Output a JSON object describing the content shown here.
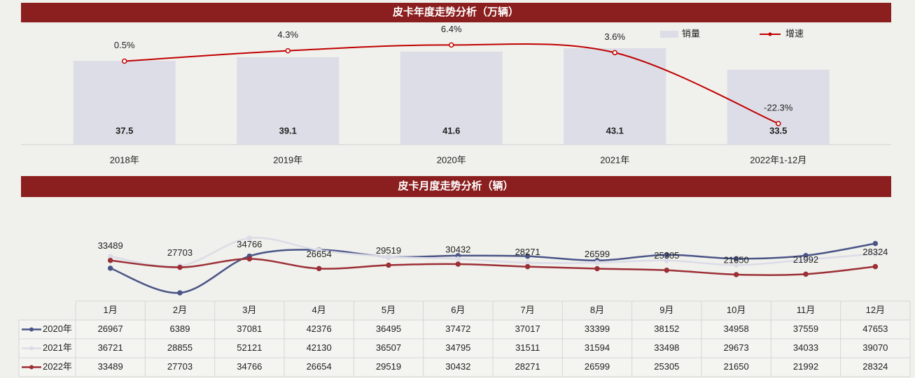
{
  "chart_data": [
    {
      "type": "combo",
      "title": "皮卡年度走势分析（万辆）",
      "categories": [
        "2018年",
        "2019年",
        "2020年",
        "2021年",
        "2022年1-12月"
      ],
      "series": [
        {
          "name": "销量",
          "type": "bar",
          "color": "#dcdde7",
          "values": [
            37.5,
            39.1,
            41.6,
            43.1,
            33.5
          ]
        },
        {
          "name": "增速",
          "type": "line",
          "axis": "y2",
          "color": "#c00000",
          "values": [
            0.5,
            4.3,
            6.4,
            3.6,
            -22.3
          ],
          "value_labels": [
            "0.5%",
            "4.3%",
            "6.4%",
            "3.6%",
            "-22.3%"
          ]
        }
      ],
      "ylim": [
        0,
        60
      ],
      "y2lim": [
        -30,
        19
      ],
      "legend": "top-right"
    },
    {
      "type": "line",
      "title": "皮卡月度走势分析（辆）",
      "categories": [
        "1月",
        "2月",
        "3月",
        "4月",
        "5月",
        "6月",
        "7月",
        "8月",
        "9月",
        "10月",
        "11月",
        "12月"
      ],
      "series": [
        {
          "name": "2020年",
          "color": "#4a5586",
          "values": [
            26967,
            6389,
            37081,
            42376,
            36495,
            37472,
            37017,
            33399,
            38152,
            34958,
            37559,
            47653
          ]
        },
        {
          "name": "2021年",
          "color": "#dcdce8",
          "values": [
            36721,
            28855,
            52121,
            42130,
            36507,
            34795,
            31511,
            31594,
            33498,
            29673,
            34033,
            39070
          ]
        },
        {
          "name": "2022年",
          "color": "#9b2f35",
          "values": [
            33489,
            27703,
            34766,
            26654,
            29519,
            30432,
            28271,
            26599,
            25305,
            21650,
            21992,
            28324
          ],
          "data_labels": true
        }
      ],
      "ylim": [
        0,
        76000
      ],
      "data_table": true
    }
  ]
}
